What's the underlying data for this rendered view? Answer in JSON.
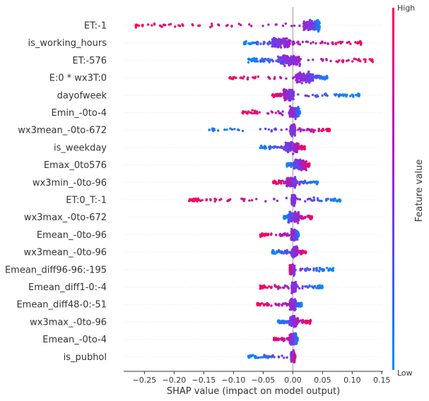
{
  "chart_data": {
    "type": "scatter",
    "subtype": "shap-beeswarm-summary",
    "xlabel": "SHAP value (impact on model output)",
    "ylabel": "",
    "xlim": [
      -0.285,
      0.152
    ],
    "xticks": [
      -0.25,
      -0.2,
      -0.15,
      -0.1,
      -0.05,
      0.0,
      0.05,
      0.1,
      0.15
    ],
    "xtick_labels": [
      "−0.25",
      "−0.20",
      "−0.15",
      "−0.10",
      "−0.05",
      "0.00",
      "0.05",
      "0.10",
      "0.15"
    ],
    "colorbar": {
      "title": "Feature value",
      "high_label": "High",
      "low_label": "Low",
      "high_color": "#ff0052",
      "low_color": "#008bfb",
      "mid_color": "#8a2be2"
    },
    "features": [
      {
        "name": "ET:-1",
        "min": -0.265,
        "max": 0.045,
        "core": [
          0.018,
          0.045
        ],
        "high": "neg"
      },
      {
        "name": "is_working_hours",
        "min": -0.082,
        "max": 0.118,
        "core": [
          -0.035,
          -0.005
        ],
        "high": "pos"
      },
      {
        "name": "ET:-576",
        "min": -0.075,
        "max": 0.135,
        "core": [
          -0.025,
          0.012
        ],
        "high": "pos"
      },
      {
        "name": "E:0 * wx3T:0",
        "min": -0.108,
        "max": 0.058,
        "core": [
          0.005,
          0.035
        ],
        "high": "neg"
      },
      {
        "name": "dayofweek",
        "min": -0.035,
        "max": 0.112,
        "core": [
          -0.015,
          0.002
        ],
        "high": "neg"
      },
      {
        "name": "Emin_-0to-4",
        "min": -0.085,
        "max": 0.012,
        "core": [
          -0.005,
          0.01
        ],
        "high": "neg"
      },
      {
        "name": "wx3mean_-0to-672",
        "min": -0.142,
        "max": 0.062,
        "core": [
          -0.004,
          0.004
        ],
        "high": "pos"
      },
      {
        "name": "is_weekday",
        "min": -0.055,
        "max": 0.02,
        "core": [
          -0.012,
          0.01
        ],
        "high": "pos"
      },
      {
        "name": "Emax_0to576",
        "min": -0.01,
        "max": 0.028,
        "core": [
          0.002,
          0.022
        ],
        "high": "pos"
      },
      {
        "name": "wx3min_-0to-96",
        "min": -0.033,
        "max": 0.042,
        "core": [
          -0.01,
          0.005
        ],
        "high": "neg"
      },
      {
        "name": "ET:0_T:-1",
        "min": -0.175,
        "max": 0.08,
        "core": [
          -0.002,
          0.004
        ],
        "high": "neg"
      },
      {
        "name": "wx3max_-0to-672",
        "min": -0.015,
        "max": 0.032,
        "core": [
          -0.008,
          0.01
        ],
        "high": "pos"
      },
      {
        "name": "Emean_-0to-96",
        "min": -0.055,
        "max": 0.01,
        "core": [
          -0.003,
          0.008
        ],
        "high": "neg"
      },
      {
        "name": "wx3mean_-0to-96",
        "min": -0.035,
        "max": 0.022,
        "core": [
          -0.002,
          0.008
        ],
        "high": "pos"
      },
      {
        "name": "Emean_diff96-96:-195",
        "min": -0.005,
        "max": 0.068,
        "core": [
          -0.005,
          0.003
        ],
        "high": "neg"
      },
      {
        "name": "Emean_diff1-0:-4",
        "min": -0.055,
        "max": 0.05,
        "core": [
          -0.002,
          0.005
        ],
        "high": "neg"
      },
      {
        "name": "Emean_diff48-0:-51",
        "min": -0.06,
        "max": 0.015,
        "core": [
          -0.005,
          0.005
        ],
        "high": "neg"
      },
      {
        "name": "wx3max_-0to-96",
        "min": -0.025,
        "max": 0.03,
        "core": [
          -0.006,
          0.008
        ],
        "high": "pos"
      },
      {
        "name": "Emean_-0to-4",
        "min": -0.032,
        "max": 0.008,
        "core": [
          -0.006,
          0.006
        ],
        "high": "neg"
      },
      {
        "name": "is_pubhol",
        "min": -0.075,
        "max": 0.004,
        "core": [
          -0.003,
          0.003
        ],
        "high": "pos"
      }
    ]
  }
}
